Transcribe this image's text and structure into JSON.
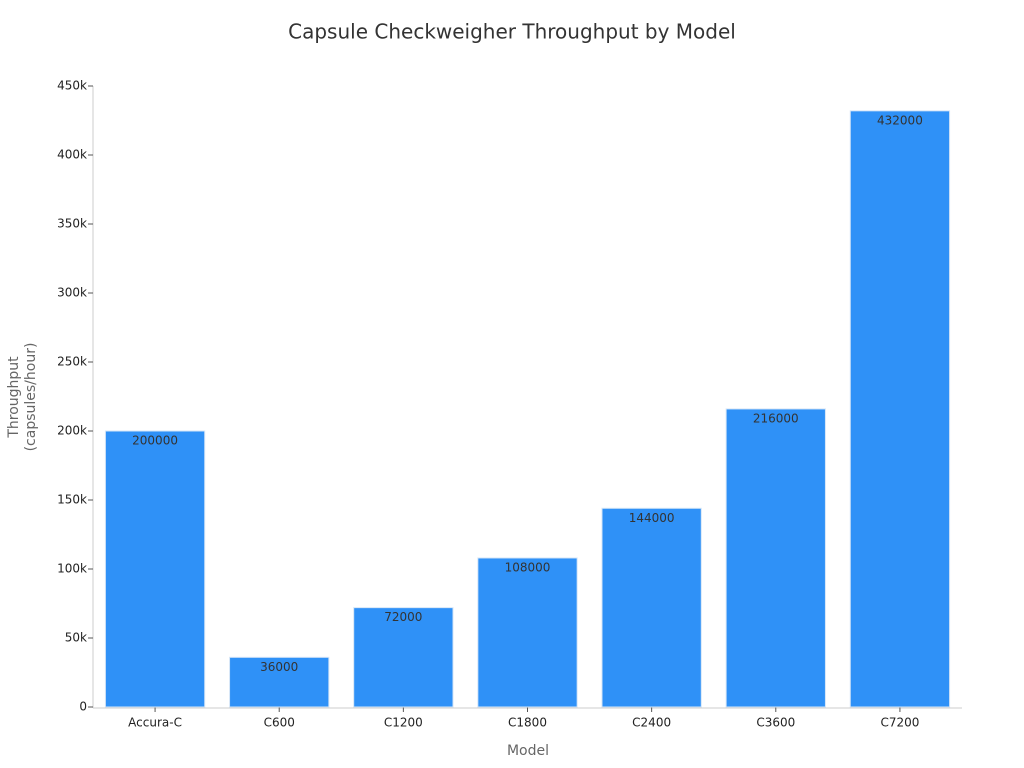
{
  "chart_data": {
    "type": "bar",
    "title": "Capsule Checkweigher Throughput by Model",
    "xlabel": "Model",
    "ylabel": [
      "Throughput",
      "(capsules/hour)"
    ],
    "categories": [
      "Accura-C",
      "C600",
      "C1200",
      "C1800",
      "C2400",
      "C3600",
      "C7200"
    ],
    "values": [
      200000,
      36000,
      72000,
      108000,
      144000,
      216000,
      432000
    ],
    "color": "#2f91f7",
    "ylim": [
      0,
      450000
    ],
    "yticks": [
      0,
      {
        "value": 50000,
        "label": "50k"
      },
      {
        "value": 100000,
        "label": "100k"
      },
      {
        "value": 150000,
        "label": "150k"
      },
      {
        "value": 200000,
        "label": "200k"
      },
      {
        "value": 250000,
        "label": "250k"
      },
      {
        "value": 300000,
        "label": "300k"
      },
      {
        "value": 350000,
        "label": "350k"
      },
      {
        "value": 400000,
        "label": "400k"
      },
      {
        "value": 450000,
        "label": "450k"
      }
    ],
    "grid": false
  }
}
